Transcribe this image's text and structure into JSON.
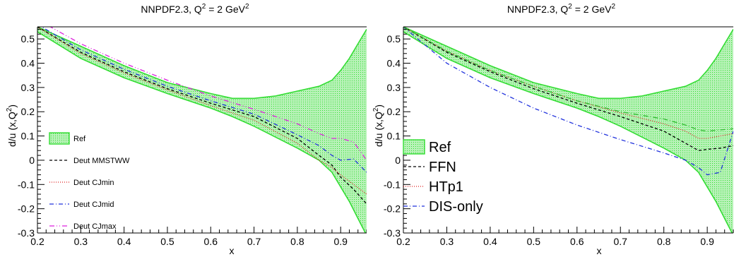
{
  "chart_data": [
    {
      "type": "line",
      "title": "NNPDF2.3,  Q",
      "title_sup1": "2",
      "title_mid": " = 2 GeV",
      "title_sup2": "2",
      "xlabel": "x",
      "ylabel": "d/u (x,Q",
      "ylabel_sup": "2",
      "ylabel_end": ")",
      "xlim": [
        0.2,
        0.96
      ],
      "ylim": [
        -0.3,
        0.55
      ],
      "x_ticks": [
        0.2,
        0.3,
        0.4,
        0.5,
        0.6,
        0.7,
        0.8,
        0.9
      ],
      "x_tick_labels": [
        "0.2",
        "0.3",
        "0.4",
        "0.5",
        "0.6",
        "0.7",
        "0.8",
        "0.9"
      ],
      "y_ticks": [
        -0.3,
        -0.2,
        -0.1,
        0,
        0.1,
        0.2,
        0.3,
        0.4,
        0.5
      ],
      "y_tick_labels": [
        "-0.3",
        "-0.2",
        "-0.1",
        "0",
        "0.1",
        "0.2",
        "0.3",
        "0.4",
        "0.5"
      ],
      "legend_position": "bottom-left",
      "legend_size": "small",
      "band": {
        "name": "Ref",
        "color": "#33dd33",
        "fill": "#b8f2b8",
        "x": [
          0.2,
          0.3,
          0.4,
          0.5,
          0.6,
          0.65,
          0.7,
          0.75,
          0.8,
          0.85,
          0.88,
          0.9,
          0.92,
          0.94,
          0.96
        ],
        "upper": [
          0.55,
          0.47,
          0.39,
          0.32,
          0.275,
          0.255,
          0.255,
          0.265,
          0.285,
          0.305,
          0.33,
          0.37,
          0.42,
          0.48,
          0.54
        ],
        "lower": [
          0.53,
          0.42,
          0.34,
          0.275,
          0.215,
          0.18,
          0.14,
          0.095,
          0.05,
          0.0,
          -0.05,
          -0.11,
          -0.17,
          -0.24,
          -0.31
        ]
      },
      "series": [
        {
          "name": "Deut MMSTWW",
          "color": "#000000",
          "dash": "4,3",
          "x": [
            0.2,
            0.3,
            0.4,
            0.5,
            0.6,
            0.7,
            0.8,
            0.85,
            0.88,
            0.9,
            0.93,
            0.96
          ],
          "y": [
            0.55,
            0.445,
            0.365,
            0.295,
            0.235,
            0.18,
            0.09,
            0.02,
            -0.02,
            -0.07,
            -0.12,
            -0.18
          ]
        },
        {
          "name": "Deut CJmin",
          "color": "#dd2222",
          "dash": "1,2",
          "x": [
            0.2,
            0.3,
            0.4,
            0.5,
            0.6,
            0.7,
            0.8,
            0.85,
            0.88,
            0.9,
            0.93,
            0.96
          ],
          "y": [
            0.55,
            0.44,
            0.36,
            0.29,
            0.225,
            0.165,
            0.07,
            0.0,
            -0.03,
            -0.06,
            -0.1,
            -0.14
          ]
        },
        {
          "name": "Deut CJmid",
          "color": "#2233dd",
          "dash": "6,3,1,3",
          "x": [
            0.2,
            0.3,
            0.4,
            0.5,
            0.6,
            0.7,
            0.8,
            0.85,
            0.88,
            0.9,
            0.93,
            0.96
          ],
          "y": [
            0.56,
            0.455,
            0.375,
            0.305,
            0.245,
            0.19,
            0.105,
            0.06,
            0.02,
            0.0,
            0.005,
            -0.05
          ]
        },
        {
          "name": "Deut CJmax",
          "color": "#dd22dd",
          "dash": "7,3,1,3,1,3",
          "x": [
            0.2,
            0.3,
            0.4,
            0.5,
            0.6,
            0.7,
            0.8,
            0.85,
            0.88,
            0.9,
            0.93,
            0.96
          ],
          "y": [
            0.58,
            0.48,
            0.4,
            0.33,
            0.265,
            0.21,
            0.15,
            0.11,
            0.09,
            0.09,
            0.075,
            0.0
          ]
        }
      ]
    },
    {
      "type": "line",
      "title": "NNPDF2.3,  Q",
      "title_sup1": "2",
      "title_mid": " = 2 GeV",
      "title_sup2": "2",
      "xlabel": "x",
      "ylabel": "d/u (x,Q",
      "ylabel_sup": "2",
      "ylabel_end": ")",
      "xlim": [
        0.2,
        0.96
      ],
      "ylim": [
        -0.3,
        0.55
      ],
      "x_ticks": [
        0.2,
        0.3,
        0.4,
        0.5,
        0.6,
        0.7,
        0.8,
        0.9
      ],
      "x_tick_labels": [
        "0.2",
        "0.3",
        "0.4",
        "0.5",
        "0.6",
        "0.7",
        "0.8",
        "0.9"
      ],
      "y_ticks": [
        -0.3,
        -0.2,
        -0.1,
        0,
        0.1,
        0.2,
        0.3,
        0.4,
        0.5
      ],
      "y_tick_labels": [
        "-0.3",
        "-0.2",
        "-0.1",
        "0",
        "0.1",
        "0.2",
        "0.3",
        "0.4",
        "0.5"
      ],
      "legend_position": "bottom-left",
      "legend_size": "large",
      "band": {
        "name": "Ref",
        "color": "#33dd33",
        "fill": "#b8f2b8",
        "x": [
          0.2,
          0.3,
          0.4,
          0.5,
          0.6,
          0.65,
          0.7,
          0.75,
          0.8,
          0.85,
          0.88,
          0.9,
          0.92,
          0.94,
          0.96
        ],
        "upper": [
          0.55,
          0.47,
          0.39,
          0.32,
          0.275,
          0.255,
          0.255,
          0.265,
          0.285,
          0.305,
          0.33,
          0.37,
          0.42,
          0.48,
          0.54
        ],
        "lower": [
          0.53,
          0.42,
          0.34,
          0.275,
          0.215,
          0.18,
          0.14,
          0.095,
          0.05,
          0.0,
          -0.05,
          -0.11,
          -0.17,
          -0.24,
          -0.31
        ]
      },
      "series": [
        {
          "name": "FFN",
          "color": "#000000",
          "dash": "4,3",
          "x": [
            0.2,
            0.3,
            0.4,
            0.5,
            0.6,
            0.7,
            0.8,
            0.85,
            0.88,
            0.9,
            0.93,
            0.96
          ],
          "y": [
            0.55,
            0.445,
            0.365,
            0.295,
            0.235,
            0.18,
            0.12,
            0.07,
            0.04,
            0.045,
            0.05,
            0.06
          ]
        },
        {
          "name": "HTp1",
          "color": "#dd2222",
          "dash": "1,2",
          "x": [
            0.2,
            0.3,
            0.4,
            0.5,
            0.6,
            0.7,
            0.8,
            0.85,
            0.88,
            0.9,
            0.93,
            0.96
          ],
          "y": [
            0.55,
            0.45,
            0.37,
            0.305,
            0.245,
            0.195,
            0.15,
            0.12,
            0.09,
            0.09,
            0.1,
            0.11
          ]
        },
        {
          "name": "DIS-only",
          "color": "#2233dd",
          "dash": "6,3,1,3",
          "x": [
            0.2,
            0.3,
            0.4,
            0.5,
            0.6,
            0.7,
            0.8,
            0.85,
            0.88,
            0.9,
            0.93,
            0.96
          ],
          "y": [
            0.55,
            0.4,
            0.3,
            0.215,
            0.145,
            0.085,
            0.03,
            0.0,
            -0.03,
            -0.06,
            -0.05,
            0.12
          ]
        },
        {
          "name": "",
          "color": "#33bb33",
          "dash": "7,3,1,3",
          "x": [
            0.2,
            0.3,
            0.4,
            0.5,
            0.6,
            0.7,
            0.8,
            0.85,
            0.88,
            0.9,
            0.93,
            0.96
          ],
          "y": [
            0.55,
            0.45,
            0.37,
            0.305,
            0.245,
            0.2,
            0.17,
            0.145,
            0.125,
            0.12,
            0.125,
            0.13
          ]
        }
      ]
    }
  ]
}
